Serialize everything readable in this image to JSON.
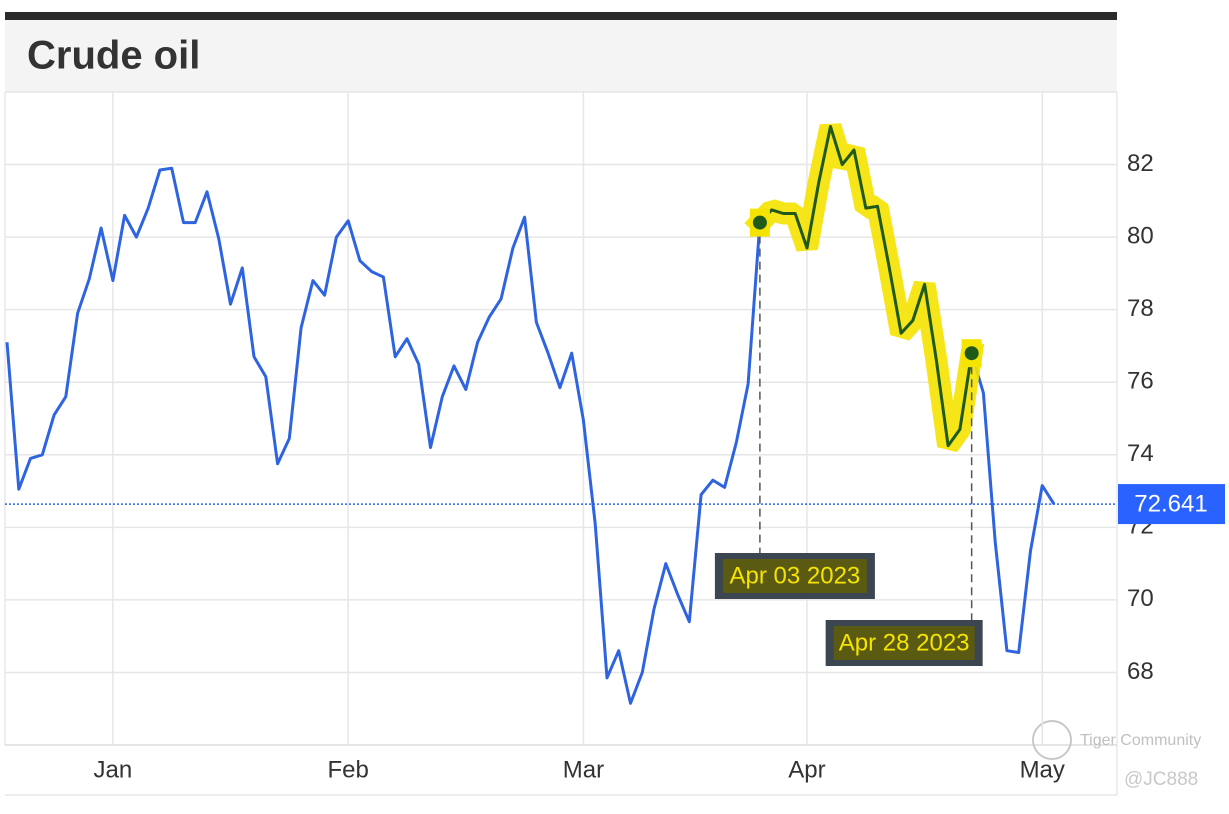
{
  "chart_data": {
    "type": "line",
    "title": "Crude oil",
    "categories": [
      null,
      null,
      null,
      null,
      null,
      null,
      null,
      null,
      null,
      "Jan",
      null,
      null,
      null,
      null,
      null,
      null,
      null,
      null,
      null,
      null,
      null,
      null,
      null,
      null,
      null,
      null,
      null,
      null,
      null,
      "Feb",
      null,
      null,
      null,
      null,
      null,
      null,
      null,
      null,
      null,
      null,
      null,
      null,
      null,
      null,
      null,
      null,
      null,
      null,
      null,
      "Mar",
      null,
      null,
      null,
      null,
      null,
      null,
      null,
      null,
      null,
      null,
      null,
      null,
      null,
      null,
      null,
      null,
      null,
      null,
      "Apr",
      null,
      null,
      null,
      null,
      null,
      null,
      null,
      null,
      null,
      null,
      null,
      null,
      null,
      null,
      null,
      null,
      null,
      null,
      null,
      "May",
      null
    ],
    "series": [
      {
        "color": "#2f64e0",
        "values": [
          77.1,
          73.05,
          73.9,
          74.0,
          75.1,
          75.6,
          77.9,
          78.85,
          80.25,
          78.8,
          80.6,
          80.0,
          80.8,
          81.85,
          81.9,
          80.4,
          80.4,
          81.25,
          79.95,
          78.15,
          79.15,
          76.7,
          76.15,
          73.75,
          74.45,
          77.5,
          78.8,
          78.4,
          80.0,
          80.45,
          79.35,
          79.05,
          78.9,
          76.7,
          77.2,
          76.5,
          74.2,
          75.6,
          76.45,
          75.8,
          77.1,
          77.8,
          78.3,
          79.7,
          80.55,
          77.65,
          76.8,
          75.85,
          76.8,
          74.95,
          72.1,
          67.85,
          68.6,
          67.15,
          68.0,
          69.75,
          71.0,
          70.15,
          69.4,
          72.9,
          73.3,
          73.1,
          74.35,
          75.95,
          80.4,
          80.75,
          80.65,
          80.65,
          79.7,
          81.5,
          83.05,
          82.0,
          82.4,
          80.8,
          80.85,
          79.15,
          77.35,
          77.7,
          78.7,
          76.6,
          74.25,
          74.7,
          76.8,
          75.7,
          71.6,
          68.6,
          68.55,
          71.35,
          73.15,
          72.64
        ]
      },
      {
        "color": "#1f5a1a",
        "highlight": "#f5e300",
        "values": [
          null,
          null,
          null,
          null,
          null,
          null,
          null,
          null,
          null,
          null,
          null,
          null,
          null,
          null,
          null,
          null,
          null,
          null,
          null,
          null,
          null,
          null,
          null,
          null,
          null,
          null,
          null,
          null,
          null,
          null,
          null,
          null,
          null,
          null,
          null,
          null,
          null,
          null,
          null,
          null,
          null,
          null,
          null,
          null,
          null,
          null,
          null,
          null,
          null,
          null,
          null,
          null,
          null,
          null,
          null,
          null,
          null,
          null,
          null,
          null,
          null,
          null,
          null,
          null,
          80.4,
          80.75,
          80.65,
          80.65,
          79.7,
          81.5,
          83.05,
          82.0,
          82.4,
          80.8,
          80.85,
          79.15,
          77.35,
          77.7,
          78.7,
          76.6,
          74.25,
          74.7,
          76.8,
          null,
          null,
          null,
          null,
          null,
          null,
          null
        ]
      }
    ],
    "ylim": [
      66,
      84
    ],
    "yticks": [
      68,
      70,
      72,
      74,
      76,
      78,
      80,
      82
    ],
    "grid": true,
    "y_axis_side": "right",
    "last_value": 72.641,
    "last_value_color": "#2962ff",
    "annotations": [
      "Apr 03 2023",
      "Apr 28 2023"
    ],
    "watermark": [
      "Tiger Community",
      "@JC888"
    ]
  }
}
